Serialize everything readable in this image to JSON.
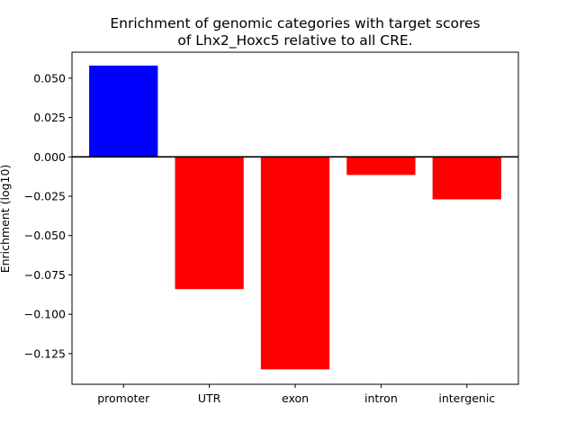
{
  "chart_data": {
    "type": "bar",
    "title_lines": [
      "Enrichment of genomic categories with target scores",
      "of Lhx2_Hoxc5 relative to all CRE."
    ],
    "xlabel": "",
    "ylabel": "Enrichment (log10)",
    "categories": [
      "promoter",
      "UTR",
      "exon",
      "intron",
      "intergenic"
    ],
    "values": [
      0.058,
      -0.084,
      -0.135,
      -0.0115,
      -0.027
    ],
    "colors": [
      "#0000ff",
      "#ff0000",
      "#ff0000",
      "#ff0000",
      "#ff0000"
    ],
    "ylim": [
      -0.1445,
      0.0665
    ],
    "yticks": [
      0.05,
      0.025,
      0.0,
      -0.025,
      -0.05,
      -0.075,
      -0.1,
      -0.125
    ],
    "ytick_labels": [
      "0.050",
      "0.025",
      "0.000",
      "−0.025",
      "−0.050",
      "−0.075",
      "−0.100",
      "−0.125"
    ],
    "zero_line": true,
    "grid": false
  }
}
